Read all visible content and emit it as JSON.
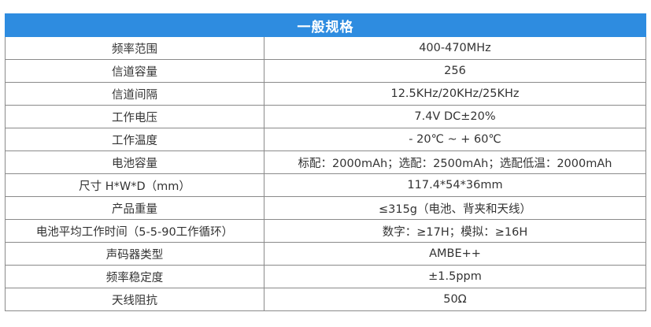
{
  "title": "一般规格",
  "colors": {
    "header_bg": "#2e8ce0",
    "header_text": "#ffffff",
    "border": "#8a8a8a",
    "text": "#333333"
  },
  "rows": [
    {
      "label": "频率范围",
      "value": "400-470MHz"
    },
    {
      "label": "信道容量",
      "value": "256"
    },
    {
      "label": "信道间隔",
      "value": "12.5KHz/20KHz/25KHz"
    },
    {
      "label": "工作电压",
      "value": "7.4V DC±20%"
    },
    {
      "label": "工作温度",
      "value": "- 20℃ ~ + 60℃"
    },
    {
      "label": "电池容量",
      "value": "标配：2000mAh；选配：2500mAh；选配低温：2000mAh"
    },
    {
      "label": "尺寸 H*W*D（mm）",
      "value": "117.4*54*36mm"
    },
    {
      "label": "产品重量",
      "value": "≤315g（电池、背夹和天线）"
    },
    {
      "label": "电池平均工作时间（5-5-90工作循环）",
      "value": "数字：≥17H；模拟：≥16H"
    },
    {
      "label": "声码器类型",
      "value": "AMBE++"
    },
    {
      "label": "频率稳定度",
      "value": "±1.5ppm"
    },
    {
      "label": "天线阻抗",
      "value": "50Ω"
    }
  ]
}
